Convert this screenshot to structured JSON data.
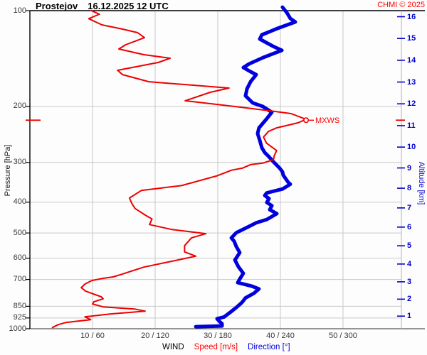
{
  "header": {
    "station": "Prostejov",
    "datetime": "16.12.2025 12 UTC",
    "credit": "CHMI © 2025"
  },
  "axes": {
    "pressure_label": "Pressure [hPa]",
    "pressure_ticks": [
      100,
      200,
      300,
      400,
      500,
      600,
      700,
      850,
      925,
      1000
    ],
    "altitude_label": "Altitude [km]",
    "altitude_ticks": [
      1,
      2,
      3,
      4,
      5,
      6,
      7,
      8,
      9,
      10,
      11,
      12,
      13,
      14,
      15,
      16
    ],
    "x_tick_labels": [
      "10 / 60",
      "20 / 120",
      "30 / 180",
      "40 / 240",
      "50 / 300"
    ],
    "caption_wind": "WIND",
    "caption_speed": "Speed [m/s]",
    "caption_direction": "Direction [°]"
  },
  "colors": {
    "speed_line": "#ee0000",
    "direction_line": "#0000dd",
    "grid": "#c8c8c8",
    "axis_border": "#000000",
    "right_border": "#b4b4b4",
    "tick_text": "#383838",
    "altitude_text": "#0000cc",
    "credit_text": "#ff0000",
    "mxws": "#f00000"
  },
  "annotations": {
    "mxws_label": "MXWS",
    "mxws_pressure_hPa": 221,
    "mxws_speed_ms": 44.1,
    "mxws_altitude_km": 11.2
  },
  "chart_data": {
    "type": "line",
    "title": "Prostejov 16.12.2025 12 UTC — vertical wind profile",
    "x_axes": {
      "speed_range_m_s": [
        0,
        59.5
      ],
      "direction_range_deg": [
        0,
        357
      ],
      "speed_gridlines_m_s": [
        10,
        20,
        30,
        40,
        50
      ],
      "direction_gridlines_deg": [
        60,
        120,
        180,
        240,
        300
      ]
    },
    "y_axis": {
      "pressure_range_hPa": [
        100,
        1000
      ],
      "scale": "log",
      "gridline_pressures": [
        200,
        300,
        400,
        500,
        600,
        700,
        850,
        925
      ]
    },
    "legend_position": "bottom",
    "series": [
      {
        "name": "Speed [m/s]",
        "color": "#ee0000",
        "points_pressure_value": [
          [
            100,
            9.8
          ],
          [
            102.6,
            11.1
          ],
          [
            106,
            9.4
          ],
          [
            110.8,
            11.5
          ],
          [
            114.3,
            14.8
          ],
          [
            117.3,
            17.2
          ],
          [
            121.6,
            18.3
          ],
          [
            128,
            15.3
          ],
          [
            132,
            14.2
          ],
          [
            137.5,
            18.2
          ],
          [
            141.1,
            22.4
          ],
          [
            145.5,
            20.5
          ],
          [
            154,
            14.0
          ],
          [
            158.9,
            14.8
          ],
          [
            167.3,
            19.0
          ],
          [
            175.1,
            31.8
          ],
          [
            180.6,
            28.8
          ],
          [
            192,
            24.8
          ],
          [
            200,
            32.6
          ],
          [
            206.4,
            38.3
          ],
          [
            210.7,
            41.7
          ],
          [
            219.6,
            44.1
          ],
          [
            225.3,
            42.8
          ],
          [
            233.6,
            39.4
          ],
          [
            239.7,
            38.1
          ],
          [
            249.8,
            37.3
          ],
          [
            261,
            37.8
          ],
          [
            275.4,
            39.4
          ],
          [
            286.5,
            39.0
          ],
          [
            294,
            38.9
          ],
          [
            301.4,
            37.2
          ],
          [
            304.6,
            35.3
          ],
          [
            312.9,
            33.9
          ],
          [
            317.3,
            32.2
          ],
          [
            330.6,
            29.9
          ],
          [
            354.8,
            24.2
          ],
          [
            367.7,
            17.8
          ],
          [
            388.3,
            15.9
          ],
          [
            404.3,
            16.3
          ],
          [
            418.8,
            16.8
          ],
          [
            440.4,
            18.5
          ],
          [
            451.8,
            19.5
          ],
          [
            470.5,
            19.1
          ],
          [
            487.6,
            22.7
          ],
          [
            502.6,
            28.1
          ],
          [
            518.2,
            25.8
          ],
          [
            547.7,
            24.7
          ],
          [
            573.5,
            24.7
          ],
          [
            591.5,
            26.5
          ],
          [
            613.4,
            22.7
          ],
          [
            640.1,
            18.2
          ],
          [
            672.9,
            14.8
          ],
          [
            687.2,
            13.3
          ],
          [
            694.4,
            11.7
          ],
          [
            705.3,
            9.9
          ],
          [
            723.7,
            8.8
          ],
          [
            742.6,
            8.2
          ],
          [
            761.9,
            8.9
          ],
          [
            793.7,
            11.4
          ],
          [
            805,
            11.7
          ],
          [
            822.9,
            10.2
          ],
          [
            835.9,
            10.0
          ],
          [
            853.4,
            11.7
          ],
          [
            866.8,
            16.7
          ],
          [
            880.4,
            18.4
          ],
          [
            898.8,
            12.8
          ],
          [
            917.5,
            8.8
          ],
          [
            936.7,
            9.7
          ],
          [
            956.2,
            5.7
          ],
          [
            971.1,
            4.5
          ],
          [
            991.4,
            3.6
          ]
        ]
      },
      {
        "name": "Direction [°]",
        "color": "#0000dd",
        "points_pressure_value": [
          [
            97.5,
            242.0
          ],
          [
            101.5,
            246.2
          ],
          [
            105.8,
            249.5
          ],
          [
            108.5,
            254.3
          ],
          [
            113.7,
            237.3
          ],
          [
            119.1,
            222.3
          ],
          [
            122.8,
            220.2
          ],
          [
            129.9,
            233.9
          ],
          [
            133.3,
            241.4
          ],
          [
            140.4,
            223.6
          ],
          [
            147,
            210.0
          ],
          [
            150.9,
            204.5
          ],
          [
            155.6,
            211.4
          ],
          [
            158.9,
            216.8
          ],
          [
            167.3,
            211.4
          ],
          [
            176,
            208.0
          ],
          [
            185.3,
            206.6
          ],
          [
            195,
            213.4
          ],
          [
            200,
            223.0
          ],
          [
            208.7,
            231.8
          ],
          [
            218.5,
            227.0
          ],
          [
            233.6,
            219.5
          ],
          [
            243.4,
            218.2
          ],
          [
            255.9,
            220.2
          ],
          [
            269.9,
            222.3
          ],
          [
            279.4,
            225.0
          ],
          [
            286.5,
            228.4
          ],
          [
            300,
            233.9
          ],
          [
            312.9,
            239.3
          ],
          [
            321.1,
            242.0
          ],
          [
            329,
            242.7
          ],
          [
            346.6,
            247.5
          ],
          [
            351.4,
            249.5
          ],
          [
            363.7,
            242.0
          ],
          [
            374.1,
            227.0
          ],
          [
            381.1,
            225.0
          ],
          [
            390.1,
            229.1
          ],
          [
            401,
            227.0
          ],
          [
            410.3,
            231.8
          ],
          [
            422.4,
            229.8
          ],
          [
            434.6,
            236.6
          ],
          [
            453.5,
            227.0
          ],
          [
            464.4,
            216.8
          ],
          [
            478.1,
            209.3
          ],
          [
            499.2,
            197.7
          ],
          [
            518.2,
            193.0
          ],
          [
            530.6,
            195.7
          ],
          [
            551.6,
            197.7
          ],
          [
            576.3,
            201.1
          ],
          [
            608.1,
            196.4
          ],
          [
            638.5,
            199.8
          ],
          [
            669.8,
            204.5
          ],
          [
            697.7,
            201.1
          ],
          [
            716.2,
            199.1
          ],
          [
            735,
            212.7
          ],
          [
            750,
            219.5
          ],
          [
            773,
            214.8
          ],
          [
            800,
            206.6
          ],
          [
            827,
            203.2
          ],
          [
            850,
            199.1
          ],
          [
            886,
            192.3
          ],
          [
            918,
            186.1
          ],
          [
            930,
            179.3
          ],
          [
            951,
            182.0
          ],
          [
            964,
            184.1
          ],
          [
            980,
            184.1
          ],
          [
            985,
            158.9
          ]
        ]
      }
    ]
  }
}
